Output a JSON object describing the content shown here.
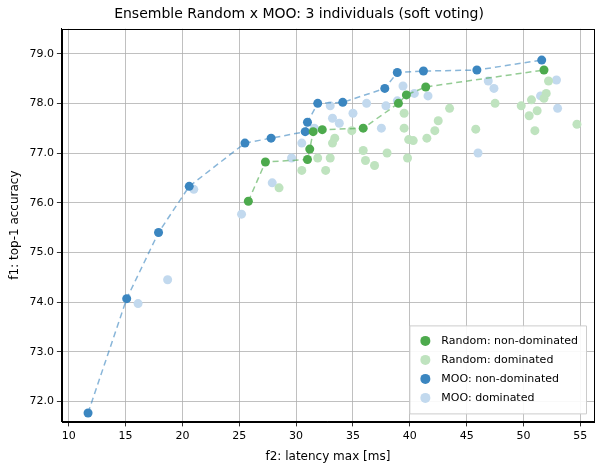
{
  "chart_data": {
    "type": "scatter",
    "title": "Ensemble Random x MOO: 3 individuals (soft voting)",
    "x_label": "f2: latency max [ms]",
    "y_label": "f1: top-1 accuracy",
    "xlim": [
      9.4,
      56.2
    ],
    "ylim": [
      71.6,
      79.5
    ],
    "xticks": [
      10,
      15,
      20,
      25,
      30,
      35,
      40,
      45,
      50,
      55
    ],
    "yticks": [
      {
        "value": 72,
        "label": "72.0"
      },
      {
        "value": 73,
        "label": "73.0"
      },
      {
        "value": 74,
        "label": "74.0"
      },
      {
        "value": 75,
        "label": "75.0"
      },
      {
        "value": 76,
        "label": "76.0"
      },
      {
        "value": 77,
        "label": "77.0"
      },
      {
        "value": 78,
        "label": "78.0"
      },
      {
        "value": 79,
        "label": "79.0"
      }
    ],
    "grid": true,
    "legend": "lower right",
    "series": [
      {
        "name": "Random: non-dominated",
        "color": "#4daa4d",
        "marker": "circle",
        "line_style": "dashed",
        "x": [
          25.8,
          27.3,
          31.0,
          31.2,
          31.5,
          32.3,
          35.9,
          39.0,
          39.7,
          41.4,
          51.8
        ],
        "values": [
          76.03,
          76.82,
          76.87,
          77.08,
          77.43,
          77.47,
          77.5,
          78.0,
          78.17,
          78.33,
          78.67
        ]
      },
      {
        "name": "Random: dominated",
        "color": "#bfe3bf",
        "marker": "circle",
        "x": [
          28.5,
          30.5,
          31.9,
          32.6,
          33.2,
          33.4,
          33.0,
          34.9,
          35.9,
          36.1,
          36.9,
          38.0,
          39.5,
          39.9,
          39.8,
          40.3,
          41.5,
          42.2,
          42.5,
          43.5,
          45.8,
          47.5,
          49.8,
          50.5,
          50.7,
          51.0,
          51.2,
          52.0,
          52.2,
          54.7,
          51.8,
          39.5
        ],
        "values": [
          76.3,
          76.65,
          76.9,
          76.65,
          77.2,
          77.3,
          76.9,
          77.45,
          77.05,
          76.85,
          76.75,
          77.0,
          77.5,
          77.27,
          76.9,
          77.25,
          77.3,
          77.45,
          77.65,
          77.9,
          77.48,
          78.0,
          77.95,
          77.75,
          78.07,
          77.45,
          77.85,
          78.2,
          78.45,
          77.58,
          78.1,
          77.8
        ]
      },
      {
        "name": "MOO: non-dominated",
        "color": "#3b86c0",
        "marker": "circle",
        "line_style": "dashed",
        "x": [
          11.7,
          15.1,
          17.9,
          20.6,
          25.5,
          27.8,
          30.8,
          31.0,
          31.9,
          34.1,
          37.8,
          38.9,
          41.2,
          45.9,
          51.6
        ],
        "values": [
          71.77,
          74.07,
          75.4,
          76.33,
          77.2,
          77.3,
          77.43,
          77.62,
          78.0,
          78.02,
          78.3,
          78.62,
          78.65,
          78.67,
          78.87
        ]
      },
      {
        "name": "MOO: dominated",
        "color": "#c2d9ee",
        "marker": "circle",
        "x": [
          16.1,
          18.7,
          21.0,
          25.2,
          27.9,
          29.6,
          30.5,
          31.6,
          33.0,
          33.2,
          33.8,
          35.0,
          36.2,
          37.5,
          37.9,
          38.9,
          39.4,
          40.4,
          41.6,
          46.0,
          46.9,
          47.4,
          51.5,
          52.9,
          53.0
        ],
        "values": [
          73.97,
          74.45,
          76.27,
          75.77,
          76.4,
          76.9,
          77.2,
          77.5,
          77.95,
          77.7,
          77.6,
          77.8,
          78.0,
          77.5,
          77.95,
          78.05,
          78.35,
          78.2,
          78.15,
          77.0,
          78.45,
          78.3,
          78.15,
          78.47,
          77.9
        ]
      }
    ]
  }
}
